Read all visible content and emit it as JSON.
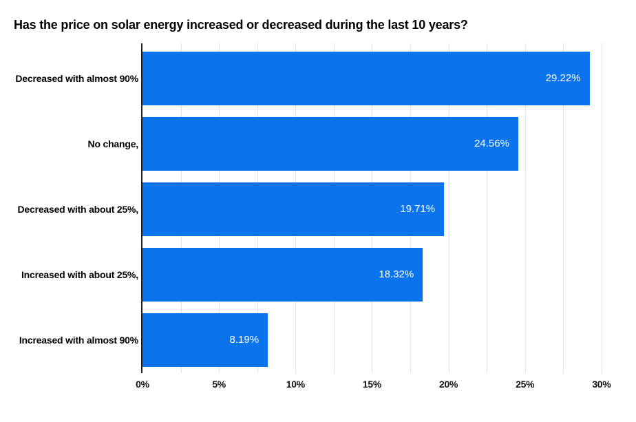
{
  "page": {
    "background_color": "#ffffff"
  },
  "chart_data": {
    "type": "bar",
    "orientation": "horizontal",
    "title": "Has the price on solar energy increased or decreased during the last 10 years?",
    "categories": [
      "Decreased with almost 90%",
      "No change,",
      "Decreased with about 25%,",
      "Increased with about 25%,",
      "Increased with almost 90%"
    ],
    "values": [
      29.22,
      24.56,
      19.71,
      18.32,
      8.19
    ],
    "value_labels": [
      "29.22%",
      "24.56%",
      "19.71%",
      "18.32%",
      "8.19%"
    ],
    "xlabel": "",
    "ylabel": "",
    "xlim": [
      0,
      31.4
    ],
    "xticks": [
      0,
      5,
      10,
      15,
      20,
      25,
      30
    ],
    "xtick_labels": [
      "0%",
      "5%",
      "10%",
      "15%",
      "20%",
      "25%",
      "30%"
    ],
    "minor_grid_step": 2.5,
    "grid": true,
    "legend": false,
    "colors": {
      "bar": "#0b73ec",
      "gridline": "#e2e2e2",
      "axis_line": "#1f1f1f",
      "title_text": "#000000",
      "category_text": "#000000",
      "tick_text": "#111111",
      "value_text": "#ffffff"
    }
  }
}
